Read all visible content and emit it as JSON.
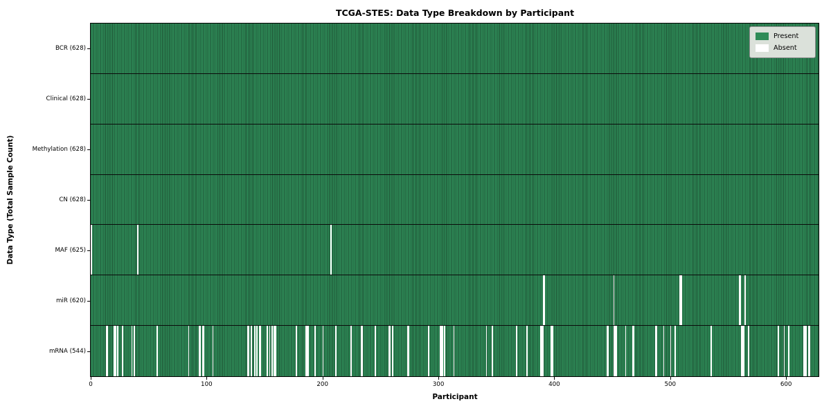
{
  "title": "TCGA-STES: Data Type Breakdown by Participant",
  "legend": {
    "present_label": "Present",
    "absent_label": "Absent"
  },
  "colors": {
    "present_fill": "#2e8b57",
    "present_edge": "#1e5234",
    "absent_fill": "#ffffff",
    "separator": "#0a0a0a",
    "legend_bg": "#dbe1da"
  },
  "chart_data": {
    "type": "heatmap",
    "title": "TCGA-STES: Data Type Breakdown by Participant",
    "xlabel": "Participant",
    "ylabel": "Data Type (Total Sample Count)",
    "legend_entries": [
      "Present",
      "Absent"
    ],
    "legend_position": "upper right",
    "grid": false,
    "n_participants": 628,
    "x_ticks": [
      0,
      100,
      200,
      300,
      400,
      500,
      600
    ],
    "xlim": [
      0,
      628
    ],
    "rows": [
      {
        "label": "BCR (628)",
        "present_count": 628,
        "absent_indices": []
      },
      {
        "label": "Clinical (628)",
        "present_count": 628,
        "absent_indices": []
      },
      {
        "label": "Methylation (628)",
        "present_count": 628,
        "absent_indices": []
      },
      {
        "label": "CN (628)",
        "present_count": 628,
        "absent_indices": []
      },
      {
        "label": "MAF (625)",
        "present_count": 625,
        "absent_indices": [
          0,
          40,
          207
        ]
      },
      {
        "label": "miR (620)",
        "present_count": 620,
        "absent_indices": [
          390,
          391,
          451,
          508,
          509,
          559,
          560,
          564
        ]
      },
      {
        "label": "mRNA (544)",
        "present_count": 544,
        "absent_indices": [
          13,
          14,
          20,
          21,
          23,
          27,
          35,
          37,
          57,
          84,
          93,
          94,
          96,
          97,
          105,
          135,
          136,
          138,
          141,
          143,
          145,
          146,
          152,
          154,
          156,
          158,
          159,
          177,
          185,
          186,
          187,
          193,
          200,
          211,
          224,
          233,
          234,
          245,
          257,
          258,
          260,
          273,
          274,
          291,
          301,
          302,
          303,
          305,
          313,
          341,
          346,
          367,
          376,
          388,
          389,
          390,
          397,
          398,
          445,
          446,
          451,
          452,
          453,
          461,
          467,
          468,
          487,
          488,
          494,
          500,
          504,
          535,
          561,
          562,
          563,
          567,
          593,
          598,
          602,
          615,
          616,
          617,
          619,
          620
        ]
      }
    ]
  }
}
